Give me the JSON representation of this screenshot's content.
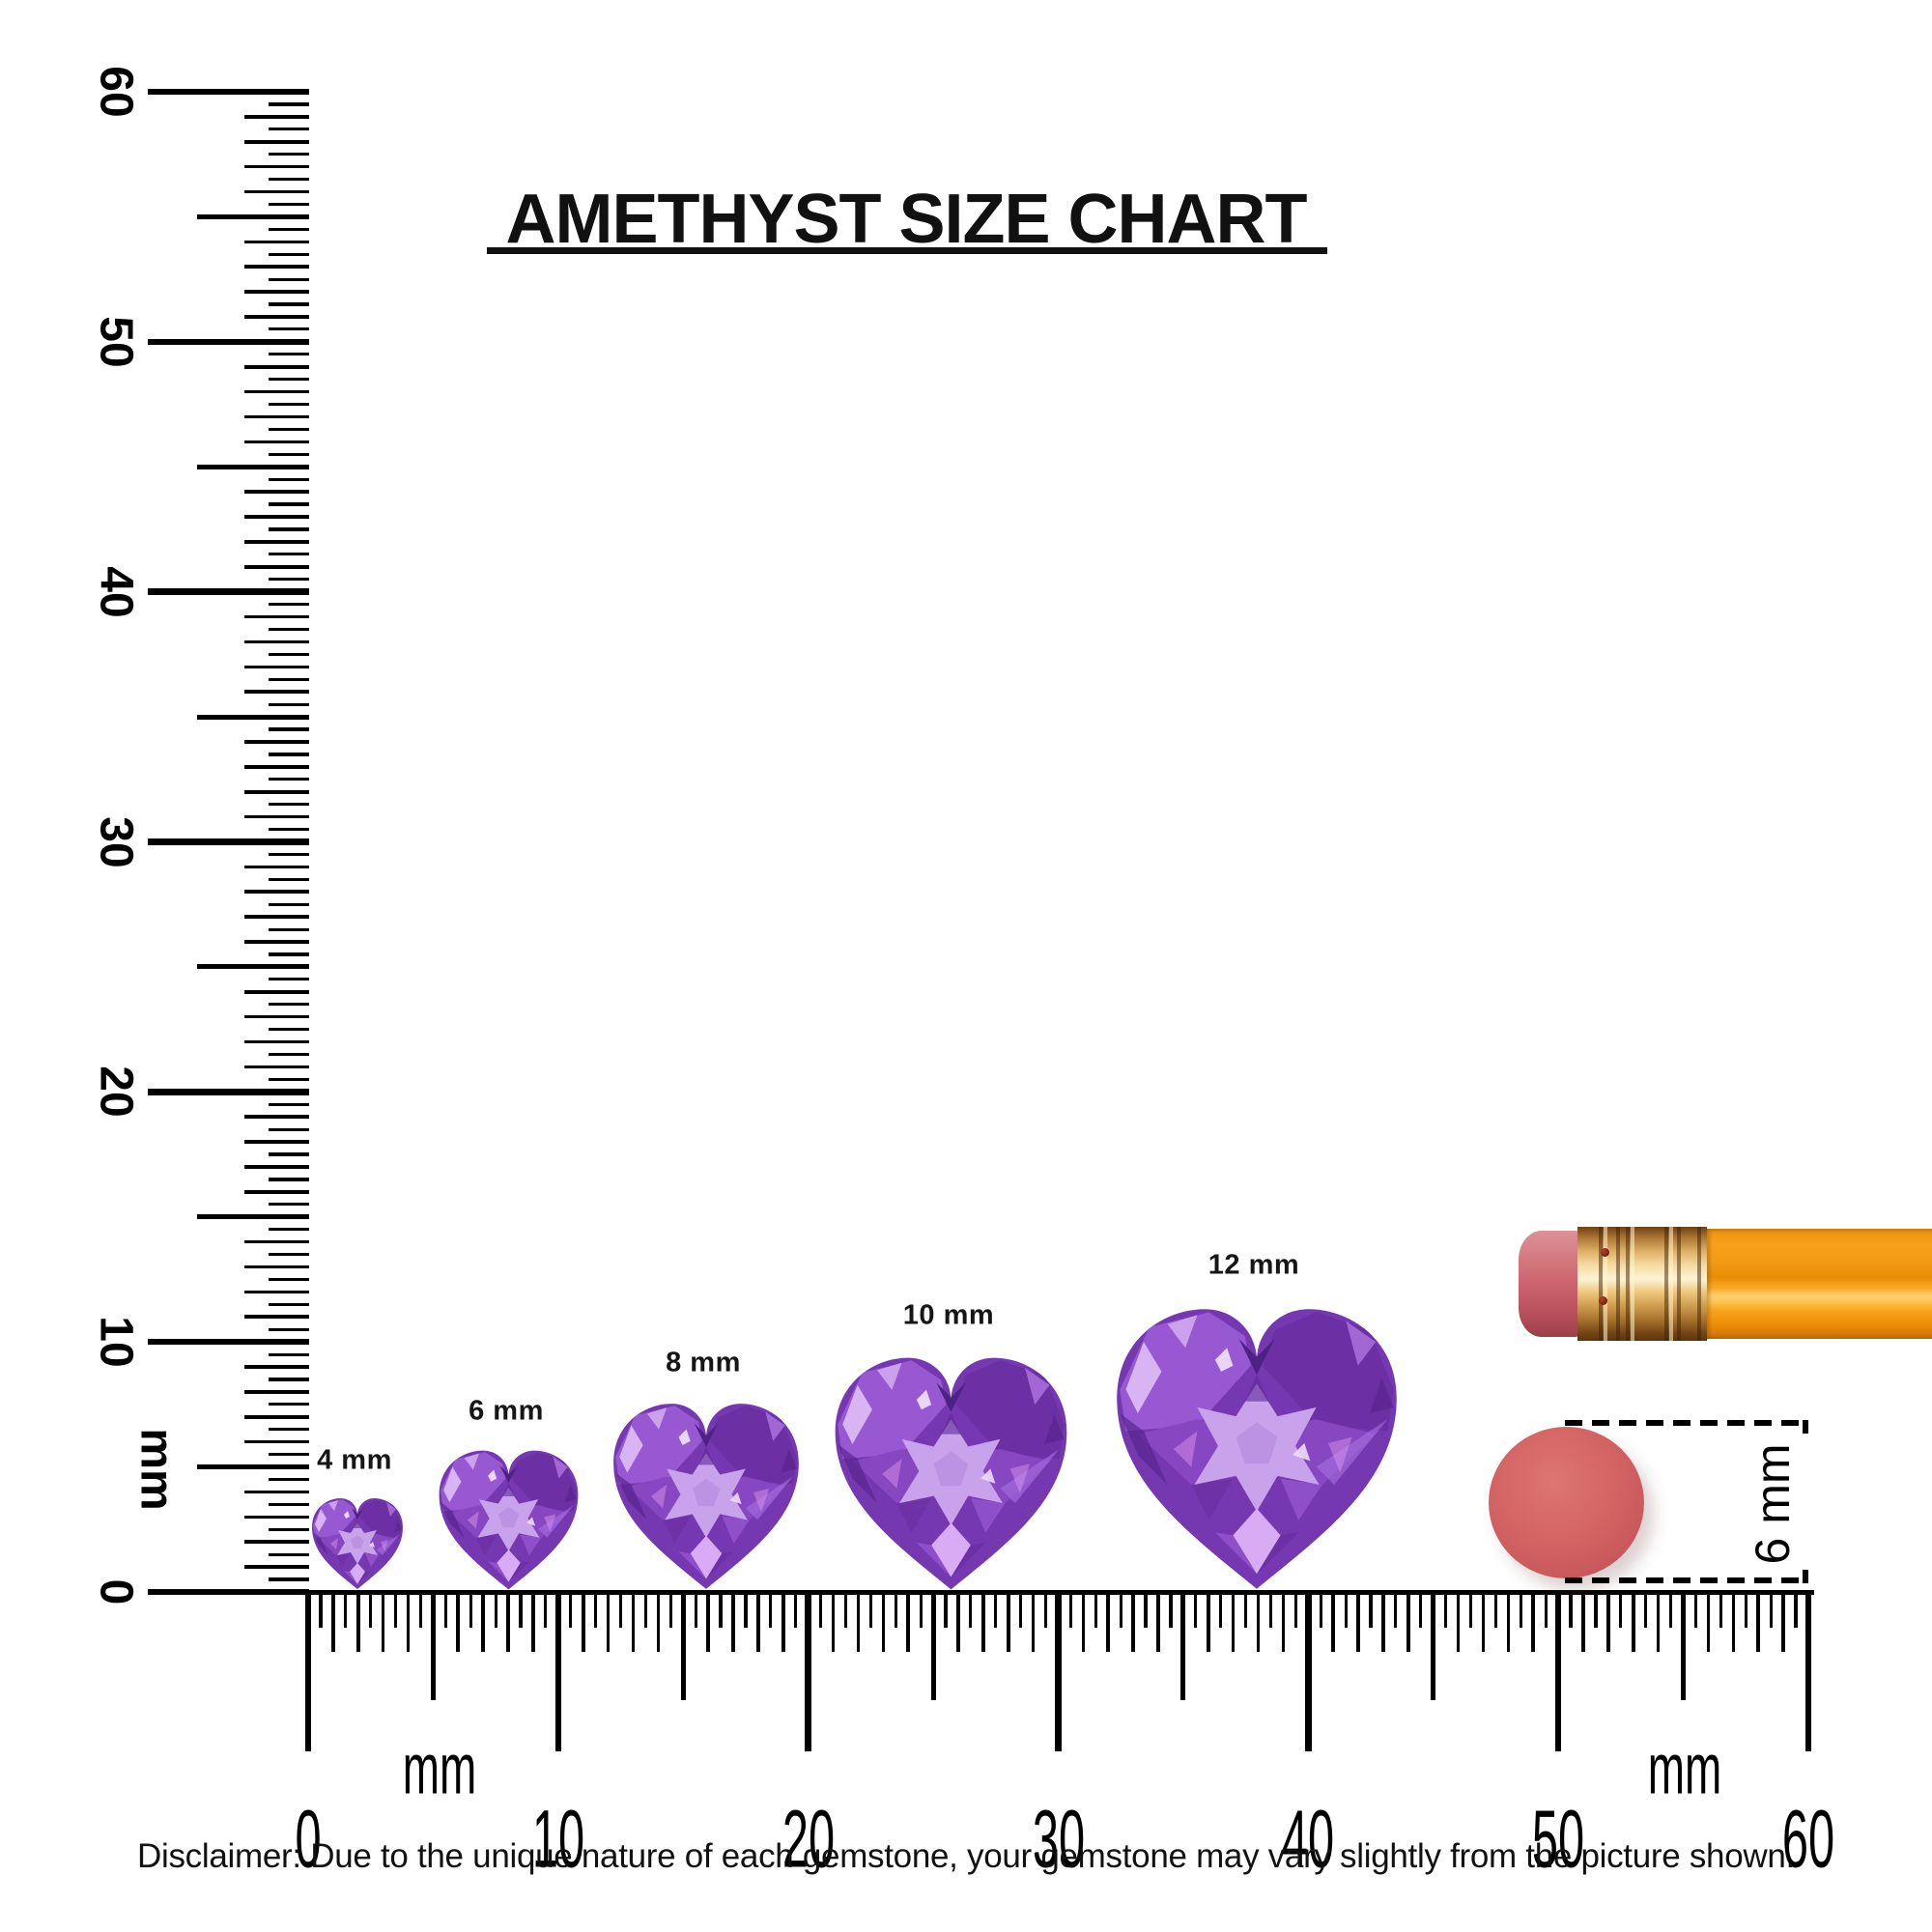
{
  "title": {
    "text": "AMETHYST SIZE CHART"
  },
  "gems": [
    {
      "label": "4 mm",
      "size_mm": 4
    },
    {
      "label": "6 mm",
      "size_mm": 6
    },
    {
      "label": "8 mm",
      "size_mm": 8
    },
    {
      "label": "10 mm",
      "size_mm": 10
    },
    {
      "label": "12 mm",
      "size_mm": 12
    }
  ],
  "rulers": {
    "unit": "mm",
    "vertical": {
      "unit_label": "mm",
      "numbers": [
        "0",
        "10",
        "20",
        "30",
        "40",
        "50",
        "60"
      ]
    },
    "horizontal": {
      "unit_label_left": "mm",
      "unit_label_right": "mm",
      "numbers": [
        "0",
        "10",
        "20",
        "30",
        "40",
        "50",
        "60"
      ]
    }
  },
  "measure": {
    "label": "6 mm"
  },
  "disclaimer": {
    "text": "Disclaimer: Due to the unique nature of each gemstone, your gemstone may vary slightly from the picture shown."
  },
  "colors": {
    "ink": "#000000",
    "amethyst_base": "#7638b0",
    "amethyst_light": "#c9a2ec",
    "amethyst_dark": "#4e2185",
    "pencil_body_orange": "#f7a01c",
    "ferrule_gold": "#eec87e",
    "eraser_pink": "#cb656e",
    "disc_coral": "#d56666"
  }
}
